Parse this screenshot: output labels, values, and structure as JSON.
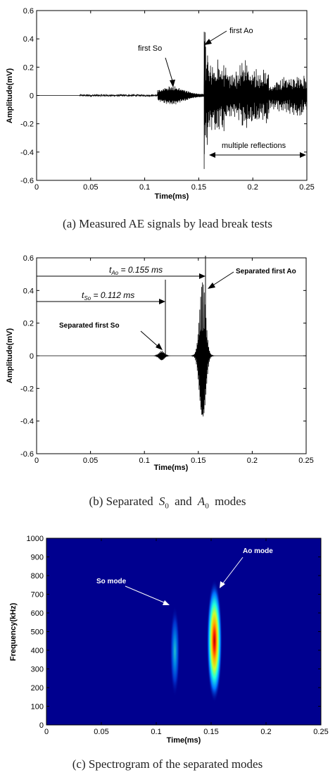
{
  "chart_data": [
    {
      "id": "a",
      "type": "line",
      "caption": "(a) Measured AE signals by lead break tests",
      "xlabel": "Time(ms)",
      "ylabel": "Amplitude(mV)",
      "xlim": [
        0,
        0.25
      ],
      "ylim": [
        -0.6,
        0.6
      ],
      "xticks": [
        "0",
        "0.05",
        "0.1",
        "0.15",
        "0.2",
        "0.25"
      ],
      "yticks": [
        "-0.6",
        "-0.4",
        "-0.2",
        "0",
        "0.2",
        "0.4",
        "0.6"
      ],
      "grid": false,
      "annotations": {
        "first_so": "first So",
        "first_ao": "first Ao",
        "multiple_reflections": "multiple reflections"
      },
      "features": {
        "noise_start_ms": 0.04,
        "so_arrival_ms": 0.112,
        "ao_arrival_ms": 0.155,
        "ao_max_mV": 0.45,
        "ao_min_mV": -0.52,
        "reflections_range_ms": [
          0.16,
          0.25
        ]
      }
    },
    {
      "id": "b",
      "type": "line",
      "caption_prefix": "(b) Separated",
      "caption_s": "S",
      "caption_s_sub": "0",
      "caption_and": "and",
      "caption_a": "A",
      "caption_a_sub": "0",
      "caption_suffix": "modes",
      "xlabel": "Time(ms)",
      "ylabel": "Amplitude(mV)",
      "xlim": [
        0,
        0.25
      ],
      "ylim": [
        -0.6,
        0.6
      ],
      "xticks": [
        "0",
        "0.05",
        "0.1",
        "0.15",
        "0.2",
        "0.25"
      ],
      "yticks": [
        "-0.6",
        "-0.4",
        "-0.2",
        "0",
        "0.2",
        "0.4",
        "0.6"
      ],
      "grid": false,
      "annotations": {
        "t_ao_sym": "t",
        "t_ao_sub": "Ao",
        "t_ao_text": " = 0.155 ms",
        "t_so_sym": "t",
        "t_so_sub": "So",
        "t_so_text": " = 0.112 ms",
        "separated_first_so": "Separated first So",
        "separated_first_ao": "Separated first Ao"
      },
      "features": {
        "so_arrival_ms": 0.112,
        "ao_arrival_ms": 0.155,
        "so_peak_mV": 0.03,
        "ao_max_mV": 0.45,
        "ao_min_mV": -0.45
      }
    },
    {
      "id": "c",
      "type": "heatmap",
      "caption": "(c) Spectrogram of the separated modes",
      "xlabel": "Time(ms)",
      "ylabel": "Frequency(kHz)",
      "xlim": [
        0,
        0.25
      ],
      "ylim": [
        0,
        1000
      ],
      "xticks": [
        "0",
        "0.05",
        "0.1",
        "0.15",
        "0.2",
        "0.25"
      ],
      "yticks": [
        "0",
        "100",
        "200",
        "300",
        "400",
        "500",
        "600",
        "700",
        "800",
        "900",
        "1000"
      ],
      "colormap": "jet",
      "background_color": "#00008f",
      "annotations": {
        "so_mode": "So mode",
        "ao_mode": "Ao mode"
      },
      "blobs": [
        {
          "name": "So mode",
          "time_ms": 0.117,
          "freq_center_kHz": 370,
          "freq_span_kHz": [
            150,
            640
          ],
          "intensity": 0.45
        },
        {
          "name": "Ao mode",
          "time_ms": 0.153,
          "freq_center_kHz": 400,
          "freq_span_kHz": [
            120,
            780
          ],
          "intensity": 1.0
        }
      ]
    }
  ]
}
